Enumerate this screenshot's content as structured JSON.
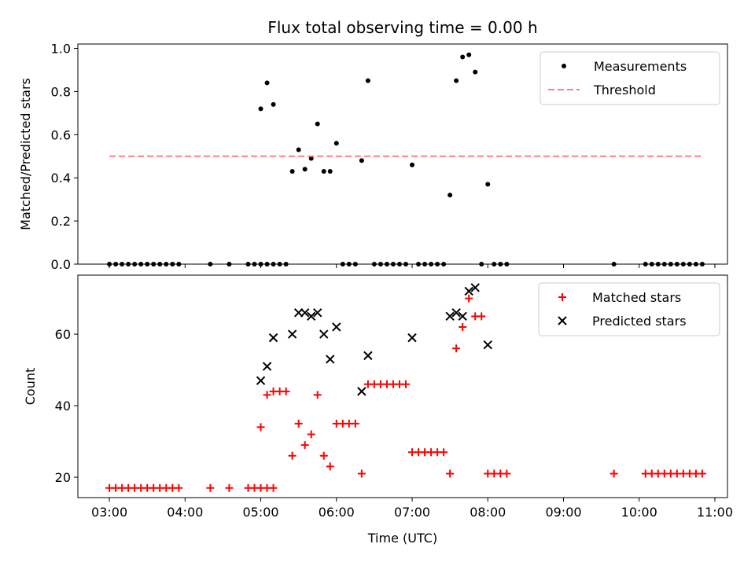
{
  "title": "Flux total observing time = 0.00 h",
  "chart_data": [
    {
      "type": "scatter",
      "panel": "top",
      "title": "Flux total observing time = 0.00 h",
      "xlabel": "",
      "ylabel": "Matched/Predicted stars",
      "xlim": [
        "02:35",
        "11:10"
      ],
      "ylim": [
        0,
        1.02
      ],
      "yticks": [
        0.0,
        0.2,
        0.4,
        0.6,
        0.8,
        1.0
      ],
      "xticks": [
        "03:00",
        "04:00",
        "05:00",
        "06:00",
        "07:00",
        "08:00",
        "09:00",
        "10:00",
        "11:00"
      ],
      "legend": "top-right",
      "grid": false,
      "series": [
        {
          "name": "Measurements",
          "marker": "dot",
          "color": "#000000",
          "points": [
            [
              "03:00",
              0
            ],
            [
              "03:05",
              0
            ],
            [
              "03:10",
              0
            ],
            [
              "03:15",
              0
            ],
            [
              "03:20",
              0
            ],
            [
              "03:25",
              0
            ],
            [
              "03:30",
              0
            ],
            [
              "03:35",
              0
            ],
            [
              "03:40",
              0
            ],
            [
              "03:45",
              0
            ],
            [
              "03:50",
              0
            ],
            [
              "03:55",
              0
            ],
            [
              "04:20",
              0
            ],
            [
              "04:35",
              0
            ],
            [
              "04:50",
              0
            ],
            [
              "04:55",
              0
            ],
            [
              "05:00",
              0
            ],
            [
              "05:05",
              0
            ],
            [
              "05:10",
              0
            ],
            [
              "05:00",
              0.72
            ],
            [
              "05:05",
              0.84
            ],
            [
              "05:10",
              0.74
            ],
            [
              "05:15",
              0
            ],
            [
              "05:20",
              0
            ],
            [
              "05:25",
              0.43
            ],
            [
              "05:30",
              0.53
            ],
            [
              "05:35",
              0.44
            ],
            [
              "05:40",
              0.49
            ],
            [
              "05:45",
              0.65
            ],
            [
              "05:50",
              0.43
            ],
            [
              "05:55",
              0.43
            ],
            [
              "06:00",
              0.56
            ],
            [
              "06:05",
              0
            ],
            [
              "06:10",
              0
            ],
            [
              "06:15",
              0
            ],
            [
              "06:20",
              0.48
            ],
            [
              "06:25",
              0.85
            ],
            [
              "06:30",
              0
            ],
            [
              "06:35",
              0
            ],
            [
              "06:40",
              0
            ],
            [
              "06:45",
              0
            ],
            [
              "06:50",
              0
            ],
            [
              "06:55",
              0
            ],
            [
              "07:00",
              0.46
            ],
            [
              "07:05",
              0
            ],
            [
              "07:10",
              0
            ],
            [
              "07:15",
              0
            ],
            [
              "07:20",
              0
            ],
            [
              "07:25",
              0
            ],
            [
              "07:30",
              0.32
            ],
            [
              "07:35",
              0.85
            ],
            [
              "07:40",
              0.96
            ],
            [
              "07:45",
              0.97
            ],
            [
              "07:50",
              0.89
            ],
            [
              "07:55",
              0
            ],
            [
              "08:00",
              0.37
            ],
            [
              "08:05",
              0
            ],
            [
              "08:10",
              0
            ],
            [
              "08:15",
              0
            ],
            [
              "09:40",
              0
            ],
            [
              "10:05",
              0
            ],
            [
              "10:10",
              0
            ],
            [
              "10:15",
              0
            ],
            [
              "10:20",
              0
            ],
            [
              "10:25",
              0
            ],
            [
              "10:30",
              0
            ],
            [
              "10:35",
              0
            ],
            [
              "10:40",
              0
            ],
            [
              "10:45",
              0
            ],
            [
              "10:50",
              0
            ]
          ]
        },
        {
          "name": "Threshold",
          "marker": "dashed-line",
          "color": "#ff7f7f",
          "points": [
            [
              "03:00",
              0.5
            ],
            [
              "10:50",
              0.5
            ]
          ]
        }
      ]
    },
    {
      "type": "scatter",
      "panel": "bottom",
      "xlabel": "Time (UTC)",
      "ylabel": "Count",
      "xlim": [
        "02:35",
        "11:10"
      ],
      "ylim": [
        14.3,
        76.5
      ],
      "yticks": [
        20,
        40,
        60
      ],
      "xticks": [
        "03:00",
        "04:00",
        "05:00",
        "06:00",
        "07:00",
        "08:00",
        "09:00",
        "10:00",
        "11:00"
      ],
      "legend": "top-right",
      "grid": false,
      "series": [
        {
          "name": "Matched stars",
          "marker": "plus",
          "color": "#ff0000",
          "points": [
            [
              "03:00",
              17
            ],
            [
              "03:05",
              17
            ],
            [
              "03:10",
              17
            ],
            [
              "03:15",
              17
            ],
            [
              "03:20",
              17
            ],
            [
              "03:25",
              17
            ],
            [
              "03:30",
              17
            ],
            [
              "03:35",
              17
            ],
            [
              "03:40",
              17
            ],
            [
              "03:45",
              17
            ],
            [
              "03:50",
              17
            ],
            [
              "03:55",
              17
            ],
            [
              "04:20",
              17
            ],
            [
              "04:35",
              17
            ],
            [
              "04:50",
              17
            ],
            [
              "04:55",
              17
            ],
            [
              "05:00",
              17
            ],
            [
              "05:05",
              17
            ],
            [
              "05:10",
              17
            ],
            [
              "05:00",
              34
            ],
            [
              "05:05",
              43
            ],
            [
              "05:10",
              44
            ],
            [
              "05:15",
              44
            ],
            [
              "05:20",
              44
            ],
            [
              "05:25",
              26
            ],
            [
              "05:30",
              35
            ],
            [
              "05:35",
              29
            ],
            [
              "05:40",
              32
            ],
            [
              "05:45",
              43
            ],
            [
              "05:50",
              26
            ],
            [
              "05:55",
              23
            ],
            [
              "06:00",
              35
            ],
            [
              "06:05",
              35
            ],
            [
              "06:10",
              35
            ],
            [
              "06:15",
              35
            ],
            [
              "06:20",
              21
            ],
            [
              "06:25",
              46
            ],
            [
              "06:30",
              46
            ],
            [
              "06:35",
              46
            ],
            [
              "06:40",
              46
            ],
            [
              "06:45",
              46
            ],
            [
              "06:50",
              46
            ],
            [
              "06:55",
              46
            ],
            [
              "07:00",
              27
            ],
            [
              "07:05",
              27
            ],
            [
              "07:10",
              27
            ],
            [
              "07:15",
              27
            ],
            [
              "07:20",
              27
            ],
            [
              "07:25",
              27
            ],
            [
              "07:30",
              21
            ],
            [
              "07:35",
              56
            ],
            [
              "07:40",
              62
            ],
            [
              "07:45",
              70
            ],
            [
              "07:50",
              65
            ],
            [
              "07:55",
              65
            ],
            [
              "08:00",
              21
            ],
            [
              "08:05",
              21
            ],
            [
              "08:10",
              21
            ],
            [
              "08:15",
              21
            ],
            [
              "09:40",
              21
            ],
            [
              "10:05",
              21
            ],
            [
              "10:10",
              21
            ],
            [
              "10:15",
              21
            ],
            [
              "10:20",
              21
            ],
            [
              "10:25",
              21
            ],
            [
              "10:30",
              21
            ],
            [
              "10:35",
              21
            ],
            [
              "10:40",
              21
            ],
            [
              "10:45",
              21
            ],
            [
              "10:50",
              21
            ]
          ]
        },
        {
          "name": "Predicted stars",
          "marker": "x",
          "color": "#000000",
          "points": [
            [
              "05:00",
              47
            ],
            [
              "05:05",
              51
            ],
            [
              "05:10",
              59
            ],
            [
              "05:25",
              60
            ],
            [
              "05:30",
              66
            ],
            [
              "05:35",
              66
            ],
            [
              "05:40",
              65
            ],
            [
              "05:45",
              66
            ],
            [
              "05:50",
              60
            ],
            [
              "05:55",
              53
            ],
            [
              "06:00",
              62
            ],
            [
              "06:20",
              44
            ],
            [
              "06:25",
              54
            ],
            [
              "07:00",
              59
            ],
            [
              "07:30",
              65
            ],
            [
              "07:35",
              66
            ],
            [
              "07:40",
              65
            ],
            [
              "07:45",
              72
            ],
            [
              "07:50",
              73
            ],
            [
              "08:00",
              57
            ]
          ]
        }
      ]
    }
  ]
}
